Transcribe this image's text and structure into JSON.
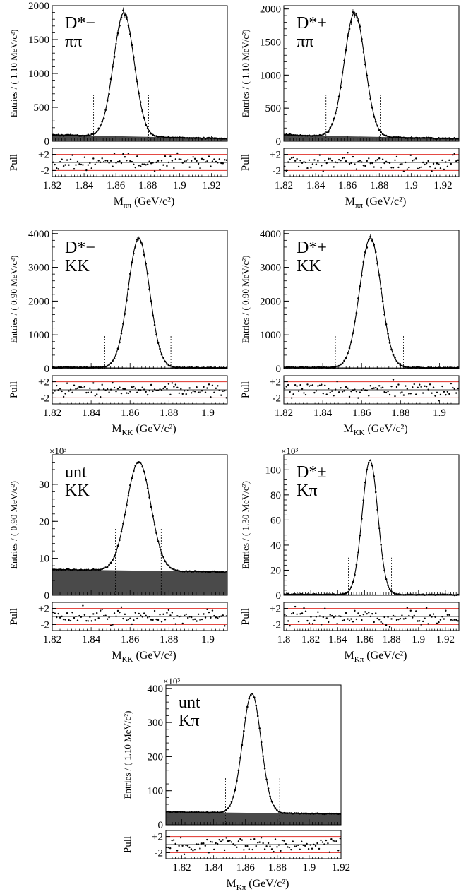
{
  "chart_data": [
    {
      "type": "line",
      "title_line1": "D*−",
      "title_line2": "ππ",
      "ylabel": "Entries / ( 1.10 MeV/c²)",
      "xlabel_main": "M",
      "xlabel_sub": "ππ",
      "xlabel_unit": " (GeV/c²)",
      "y_multiplier": "",
      "xlim": [
        1.82,
        1.93
      ],
      "ylim": [
        0,
        2000
      ],
      "x_ticks": [
        1.82,
        1.84,
        1.86,
        1.88,
        1.9,
        1.92
      ],
      "x_tick_labels": [
        "1.82",
        "1.84",
        "1.86",
        "1.88",
        "1.9",
        "1.92"
      ],
      "y_ticks": [
        0,
        500,
        1000,
        1500,
        2000
      ],
      "y_tick_labels": [
        "0",
        "500",
        "1000",
        "1500",
        "2000"
      ],
      "signal": {
        "peak_x": 1.865,
        "amplitude": 1820,
        "sigma": 0.0065
      },
      "background": {
        "start": 95,
        "end": 40
      },
      "window": [
        1.846,
        1.8805
      ],
      "window_height": 690,
      "pull_label": "Pull",
      "pull_tick_labels": [
        "+2",
        "-2"
      ],
      "pull_ylim": [
        -3.5,
        3.5
      ],
      "pull_ticks": [
        2,
        -2
      ]
    },
    {
      "type": "line",
      "title_line1": "D*+",
      "title_line2": "ππ",
      "ylabel": "Entries / ( 1.10 MeV/c²)",
      "xlabel_main": "M",
      "xlabel_sub": "ππ",
      "xlabel_unit": " (GeV/c²)",
      "y_multiplier": "",
      "xlim": [
        1.82,
        1.93
      ],
      "ylim": [
        0,
        2050
      ],
      "x_ticks": [
        1.82,
        1.84,
        1.86,
        1.88,
        1.9,
        1.92
      ],
      "x_tick_labels": [
        "1.82",
        "1.84",
        "1.86",
        "1.88",
        "1.9",
        "1.92"
      ],
      "y_ticks": [
        0,
        500,
        1000,
        1500,
        2000
      ],
      "y_tick_labels": [
        "0",
        "500",
        "1000",
        "1500",
        "2000"
      ],
      "signal": {
        "peak_x": 1.8645,
        "amplitude": 1870,
        "sigma": 0.0065
      },
      "background": {
        "start": 95,
        "end": 40
      },
      "window": [
        1.8465,
        1.8805
      ],
      "window_height": 690,
      "pull_label": "Pull",
      "pull_tick_labels": [
        "+2",
        "-2"
      ],
      "pull_ylim": [
        -3.5,
        3.5
      ],
      "pull_ticks": [
        2,
        -2
      ]
    },
    {
      "type": "line",
      "title_line1": "D*−",
      "title_line2": "KK",
      "ylabel": "Entries / ( 0.90 MeV/c²)",
      "xlabel_main": "M",
      "xlabel_sub": "KK",
      "xlabel_unit": " (GeV/c²)",
      "y_multiplier": "",
      "xlim": [
        1.82,
        1.91
      ],
      "ylim": [
        0,
        4100
      ],
      "x_ticks": [
        1.82,
        1.84,
        1.86,
        1.88,
        1.9
      ],
      "x_tick_labels": [
        "1.82",
        "1.84",
        "1.86",
        "1.88",
        "1.9"
      ],
      "y_ticks": [
        0,
        1000,
        2000,
        3000,
        4000
      ],
      "y_tick_labels": [
        "0",
        "1000",
        "2000",
        "3000",
        "4000"
      ],
      "signal": {
        "peak_x": 1.8645,
        "amplitude": 3820,
        "sigma": 0.0055
      },
      "background": {
        "start": 40,
        "end": 25
      },
      "window": [
        1.847,
        1.881
      ],
      "window_height": 1000,
      "pull_label": "Pull",
      "pull_tick_labels": [
        "+2",
        "-2"
      ],
      "pull_ylim": [
        -3.5,
        3.5
      ],
      "pull_ticks": [
        2,
        -2
      ]
    },
    {
      "type": "line",
      "title_line1": "D*+",
      "title_line2": "KK",
      "ylabel": "Entries / ( 0.90 MeV/c²)",
      "xlabel_main": "M",
      "xlabel_sub": "KK",
      "xlabel_unit": " (GeV/c²)",
      "y_multiplier": "",
      "xlim": [
        1.82,
        1.91
      ],
      "ylim": [
        0,
        4100
      ],
      "x_ticks": [
        1.82,
        1.84,
        1.86,
        1.88,
        1.9
      ],
      "x_tick_labels": [
        "1.82",
        "1.84",
        "1.86",
        "1.88",
        "1.9"
      ],
      "y_ticks": [
        0,
        1000,
        2000,
        3000,
        4000
      ],
      "y_tick_labels": [
        "0",
        "1000",
        "2000",
        "3000",
        "4000"
      ],
      "signal": {
        "peak_x": 1.8645,
        "amplitude": 3840,
        "sigma": 0.0055
      },
      "background": {
        "start": 40,
        "end": 25
      },
      "window": [
        1.8465,
        1.8815
      ],
      "window_height": 1000,
      "pull_label": "Pull",
      "pull_tick_labels": [
        "+2",
        "-2"
      ],
      "pull_ylim": [
        -3.5,
        3.5
      ],
      "pull_ticks": [
        2,
        -2
      ]
    },
    {
      "type": "line",
      "title_line1": "unt",
      "title_line2": "KK",
      "ylabel": "Entries / ( 0.90 MeV/c²)",
      "xlabel_main": "M",
      "xlabel_sub": "KK",
      "xlabel_unit": " (GeV/c²)",
      "y_multiplier": "×10³",
      "xlim": [
        1.82,
        1.91
      ],
      "ylim": [
        0,
        38
      ],
      "x_ticks": [
        1.82,
        1.84,
        1.86,
        1.88,
        1.9
      ],
      "x_tick_labels": [
        "1.82",
        "1.84",
        "1.86",
        "1.88",
        "1.9"
      ],
      "y_ticks": [
        0,
        10,
        20,
        30
      ],
      "y_tick_labels": [
        "0",
        "10",
        "20",
        "30"
      ],
      "signal": {
        "peak_x": 1.8645,
        "amplitude": 29.5,
        "sigma": 0.0062
      },
      "background": {
        "start": 7.0,
        "end": 6.3
      },
      "window": [
        1.8525,
        1.876
      ],
      "window_height": 18,
      "pull_label": "Pull",
      "pull_tick_labels": [
        "+2",
        "-2"
      ],
      "pull_ylim": [
        -3.5,
        3.5
      ],
      "pull_ticks": [
        2,
        -2
      ]
    },
    {
      "type": "line",
      "title_line1": "D*±",
      "title_line2": "Kπ",
      "ylabel": "Entries / ( 1.30 MeV/c²)",
      "xlabel_main": "M",
      "xlabel_sub": "Kπ",
      "xlabel_unit": " (GeV/c²)",
      "y_multiplier": "×10³",
      "xlim": [
        1.8,
        1.93
      ],
      "ylim": [
        0,
        112
      ],
      "x_ticks": [
        1.8,
        1.82,
        1.84,
        1.86,
        1.88,
        1.9,
        1.92
      ],
      "x_tick_labels": [
        "1.8",
        "1.82",
        "1.84",
        "1.86",
        "1.88",
        "1.9",
        "1.92"
      ],
      "y_ticks": [
        0,
        20,
        40,
        60,
        80,
        100
      ],
      "y_tick_labels": [
        "0",
        "20",
        "40",
        "60",
        "80",
        "100"
      ],
      "signal": {
        "peak_x": 1.864,
        "amplitude": 107,
        "sigma": 0.0058
      },
      "background": {
        "start": 0.8,
        "end": 0.4
      },
      "window": [
        1.848,
        1.88
      ],
      "window_height": 30,
      "pull_label": "Pull",
      "pull_tick_labels": [
        "+2",
        "-2"
      ],
      "pull_ylim": [
        -3.5,
        3.5
      ],
      "pull_ticks": [
        2,
        -2
      ]
    },
    {
      "type": "line",
      "title_line1": "unt",
      "title_line2": "Kπ",
      "ylabel": "Entries / ( 1.10 MeV/c²)",
      "xlabel_main": "M",
      "xlabel_sub": "Kπ",
      "xlabel_unit": " (GeV/c²)",
      "y_multiplier": "×10³",
      "xlim": [
        1.81,
        1.92
      ],
      "ylim": [
        0,
        410
      ],
      "x_ticks": [
        1.82,
        1.84,
        1.86,
        1.88,
        1.9,
        1.92
      ],
      "x_tick_labels": [
        "1.82",
        "1.84",
        "1.86",
        "1.88",
        "1.9",
        "1.92"
      ],
      "y_ticks": [
        0,
        100,
        200,
        300,
        400
      ],
      "y_tick_labels": [
        "0",
        "100",
        "200",
        "300",
        "400"
      ],
      "signal": {
        "peak_x": 1.864,
        "amplitude": 350,
        "sigma": 0.0058
      },
      "background": {
        "start": 38,
        "end": 32
      },
      "window": [
        1.8475,
        1.8815
      ],
      "window_height": 140,
      "pull_label": "Pull",
      "pull_tick_labels": [
        "+2",
        "-2"
      ],
      "pull_ylim": [
        -3.5,
        3.5
      ],
      "pull_ticks": [
        2,
        -2
      ]
    }
  ],
  "colors": {
    "background_fill": "#4a4a4a",
    "pull_band_lines": "#e0302a",
    "axis": "#000000",
    "points": "#000000",
    "fit_curve": "#000000"
  }
}
